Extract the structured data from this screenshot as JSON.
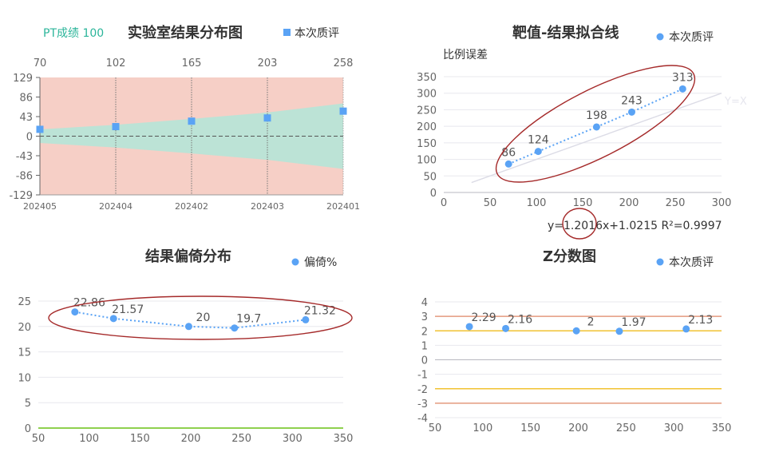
{
  "colors": {
    "series": "#5aa3f5",
    "grid": "#e8e8ee",
    "axis": "#b8b8c0",
    "fail_band": "#f6cfc6",
    "pass_band": "#bce3d6",
    "pt_text": "#2bb59a",
    "ellipse": "#a52a2a",
    "fit_line": "#dcdce6",
    "red_line": "#e49a7e",
    "yellow_line": "#f1c232",
    "green_line": "#8fd14f"
  },
  "chart_data": [
    {
      "id": "lab-distribution",
      "type": "scatter",
      "title": "实验室结果分布图",
      "pt_score": "PT成绩 100",
      "legend": [
        "本次质评"
      ],
      "legend_position": "top-right",
      "categories": [
        "202405",
        "202404",
        "202402",
        "202403",
        "202401"
      ],
      "target_values": [
        "70",
        "102",
        "165",
        "203",
        "258"
      ],
      "y_ticks": [
        "129",
        "86",
        "43",
        "0",
        "-43",
        "-86",
        "-129"
      ],
      "ylim": [
        -129,
        129
      ],
      "values": [
        15,
        21,
        33,
        40,
        55
      ],
      "pass_band_half_width": [
        15,
        25,
        38,
        52,
        72
      ]
    },
    {
      "id": "target-fit",
      "type": "scatter",
      "title": "靶值-结果拟合线",
      "ylabel": "比例误差",
      "legend": [
        "本次质评"
      ],
      "legend_position": "top-right",
      "x_ticks": [
        "0",
        "50",
        "100",
        "150",
        "200",
        "250",
        "300"
      ],
      "y_ticks": [
        "0",
        "50",
        "100",
        "150",
        "200",
        "250",
        "300",
        "350"
      ],
      "xlim": [
        0,
        300
      ],
      "ylim": [
        0,
        350
      ],
      "x": [
        70,
        102,
        165,
        203,
        258
      ],
      "y": [
        86,
        124,
        198,
        243,
        313
      ],
      "labels": [
        "86",
        "124",
        "198",
        "243",
        "313"
      ],
      "reference_line_label": "Y=X",
      "reference_line": [
        [
          30,
          30
        ],
        [
          300,
          300
        ]
      ],
      "equation": "y=1.2016x+1.0215  R²=0.9997"
    },
    {
      "id": "bias-distribution",
      "type": "scatter",
      "title": "结果偏倚分布",
      "legend": [
        "偏倚%"
      ],
      "legend_position": "top-right",
      "x_ticks": [
        "50",
        "100",
        "150",
        "200",
        "250",
        "300",
        "350"
      ],
      "y_ticks": [
        "0",
        "5",
        "10",
        "15",
        "20",
        "25"
      ],
      "xlim": [
        50,
        350
      ],
      "ylim": [
        0,
        25
      ],
      "x": [
        86,
        124,
        198,
        243,
        313
      ],
      "y": [
        22.86,
        21.57,
        20,
        19.7,
        21.32
      ],
      "labels": [
        "22.86",
        "21.57",
        "20",
        "19.7",
        "21.32"
      ],
      "reference_y": 0
    },
    {
      "id": "z-score",
      "type": "scatter",
      "title": "Z分数图",
      "legend": [
        "本次质评"
      ],
      "legend_position": "top-right",
      "x_ticks": [
        "50",
        "100",
        "150",
        "200",
        "250",
        "300",
        "350"
      ],
      "y_ticks": [
        "4",
        "3",
        "2",
        "1",
        "0",
        "-1",
        "-2",
        "-3",
        "-4"
      ],
      "xlim": [
        50,
        350
      ],
      "ylim": [
        -4,
        4
      ],
      "x": [
        86,
        124,
        198,
        243,
        313
      ],
      "y": [
        2.29,
        2.16,
        2,
        1.97,
        2.13
      ],
      "labels": [
        "2.29",
        "2.16",
        "2",
        "1.97",
        "2.13"
      ],
      "limit_lines": [
        3,
        2,
        -2,
        -3
      ]
    }
  ]
}
